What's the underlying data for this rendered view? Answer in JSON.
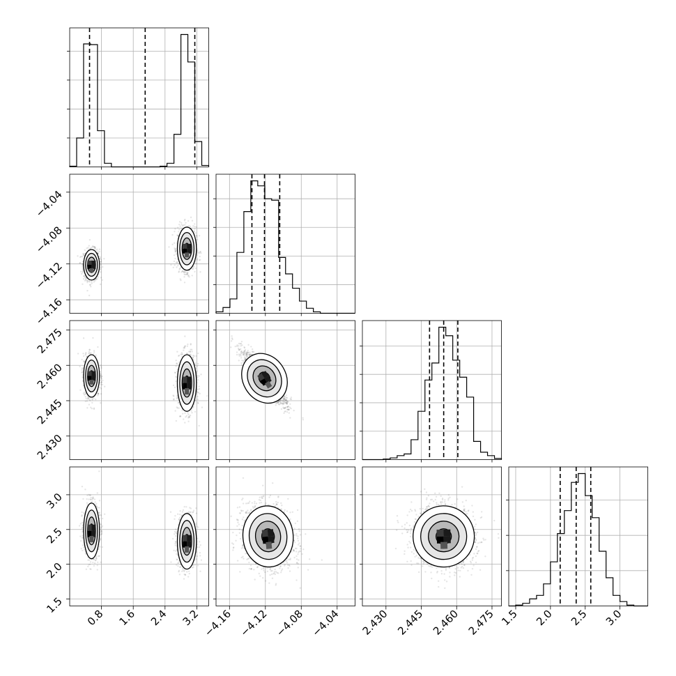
{
  "chart_data": {
    "type": "corner",
    "parameters": [
      {
        "ticks": [
          0.8,
          1.6,
          2.4,
          3.2
        ],
        "tick_labels": [
          "0.8",
          "1.6",
          "2.4",
          "3.2"
        ],
        "range": [
          0.0,
          3.5
        ],
        "quantiles": [
          0.5,
          1.9,
          3.15
        ]
      },
      {
        "ticks": [
          -4.16,
          -4.12,
          -4.08,
          -4.04
        ],
        "tick_labels": [
          "−4.16",
          "−4.12",
          "−4.08",
          "−4.04"
        ],
        "range": [
          -4.175,
          -4.02
        ],
        "quantiles": [
          -4.135,
          -4.121,
          -4.104
        ]
      },
      {
        "ticks": [
          2.43,
          2.445,
          2.46,
          2.475
        ],
        "tick_labels": [
          "2.430",
          "2.445",
          "2.460",
          "2.475"
        ],
        "range": [
          2.42,
          2.479
        ],
        "quantiles": [
          2.4485,
          2.4545,
          2.4605
        ]
      },
      {
        "ticks": [
          1.5,
          2.0,
          2.5,
          3.0
        ],
        "tick_labels": [
          "1.5",
          "2.0",
          "2.5",
          "3.0"
        ],
        "range": [
          1.4,
          3.4
        ],
        "quantiles": [
          2.14,
          2.37,
          2.58
        ]
      }
    ],
    "marginals": [
      {
        "bin_edges": [
          0.0,
          0.175,
          0.35,
          0.525,
          0.7,
          0.875,
          1.05,
          1.225,
          1.4,
          1.575,
          1.75,
          1.925,
          2.1,
          2.275,
          2.45,
          2.625,
          2.8,
          2.975,
          3.15,
          3.325,
          3.5
        ],
        "counts": [
          1,
          40,
          170,
          169,
          50,
          5,
          0,
          0,
          0,
          0,
          0,
          0,
          0,
          1,
          5,
          45,
          183,
          145,
          35,
          2
        ]
      },
      {
        "bin_edges": [
          -4.175,
          -4.16725,
          -4.1595,
          -4.15175,
          -4.144,
          -4.13625,
          -4.1285,
          -4.12075,
          -4.113,
          -4.10525,
          -4.0975,
          -4.08975,
          -4.082,
          -4.07425,
          -4.0665,
          -4.05875,
          -4.051,
          -4.04325,
          -4.0355,
          -4.02775,
          -4.02
        ],
        "counts": [
          2,
          8,
          20,
          85,
          142,
          185,
          178,
          160,
          158,
          78,
          55,
          35,
          17,
          7,
          2,
          0,
          0,
          0,
          0,
          0
        ]
      },
      {
        "bin_edges": [
          2.42,
          2.42295,
          2.4259,
          2.42885,
          2.4318,
          2.43475,
          2.4377,
          2.44065,
          2.4436,
          2.44655,
          2.4495,
          2.45245,
          2.4554,
          2.45835,
          2.4613,
          2.46425,
          2.4672,
          2.47015,
          2.4731,
          2.47605,
          2.479
        ],
        "counts": [
          0,
          0,
          0,
          1,
          3,
          7,
          10,
          35,
          85,
          140,
          170,
          233,
          218,
          175,
          145,
          110,
          32,
          13,
          7,
          2
        ]
      },
      {
        "bin_edges": [
          1.4,
          1.5,
          1.6,
          1.7,
          1.8,
          1.9,
          2.0,
          2.1,
          2.2,
          2.3,
          2.4,
          2.5,
          2.6,
          2.7,
          2.8,
          2.9,
          3.0,
          3.1,
          3.2,
          3.3,
          3.4
        ],
        "counts": [
          0,
          1,
          3,
          8,
          12,
          25,
          50,
          82,
          108,
          140,
          150,
          125,
          100,
          62,
          32,
          12,
          5,
          1,
          0,
          0
        ]
      }
    ],
    "pairs": [
      {
        "x": 0,
        "y": 1,
        "modes": [
          {
            "cx": 0.55,
            "cy": -4.121,
            "sx": 0.1,
            "sy": 0.0085,
            "rho": 0.0,
            "w": 0.5
          },
          {
            "cx": 2.95,
            "cy": -4.103,
            "sx": 0.12,
            "sy": 0.012,
            "rho": 0.0,
            "w": 0.5
          }
        ]
      },
      {
        "x": 0,
        "y": 2,
        "modes": [
          {
            "cx": 0.55,
            "cy": 2.4555,
            "sx": 0.1,
            "sy": 0.0045,
            "rho": 0.0,
            "w": 0.5
          },
          {
            "cx": 2.95,
            "cy": 2.4525,
            "sx": 0.12,
            "sy": 0.006,
            "rho": 0.0,
            "w": 0.5
          }
        ]
      },
      {
        "x": 1,
        "y": 2,
        "modes": [
          {
            "cx": -4.121,
            "cy": 2.4545,
            "sx": 0.012,
            "sy": 0.0055,
            "rho": -0.9,
            "w": 1.0
          }
        ]
      },
      {
        "x": 0,
        "y": 3,
        "modes": [
          {
            "cx": 0.55,
            "cy": 2.48,
            "sx": 0.1,
            "sy": 0.2,
            "rho": 0.0,
            "w": 0.5
          },
          {
            "cx": 2.95,
            "cy": 2.33,
            "sx": 0.12,
            "sy": 0.2,
            "rho": 0.0,
            "w": 0.5
          }
        ]
      },
      {
        "x": 1,
        "y": 3,
        "modes": [
          {
            "cx": -4.117,
            "cy": 2.4,
            "sx": 0.014,
            "sy": 0.22,
            "rho": -0.15,
            "w": 1.0
          }
        ]
      },
      {
        "x": 2,
        "y": 3,
        "modes": [
          {
            "cx": 2.4545,
            "cy": 2.4,
            "sx": 0.0065,
            "sy": 0.22,
            "rho": -0.05,
            "w": 1.0
          }
        ]
      }
    ],
    "grid": true,
    "quantile_lines": "dashed"
  }
}
